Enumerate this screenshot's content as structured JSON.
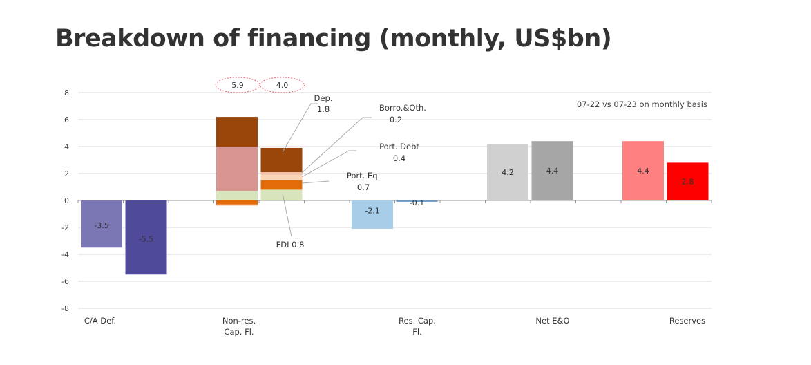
{
  "title": "Breakdown of financing (monthly, US$bn)",
  "chart_data": {
    "type": "bar",
    "stacked": true,
    "note": "07-22 vs 07-23 on monthly basis",
    "ylim": [
      -8,
      8
    ],
    "yticks": [
      8,
      6,
      4,
      2,
      0,
      -2,
      -4,
      -6,
      -8
    ],
    "grid": true,
    "categories": [
      "C/A Def.",
      "Non-res.\nCap. Fl.",
      "Res. Cap.\nFl.",
      "Net E&O",
      "Reserves"
    ],
    "bars": [
      [
        {
          "label": "-3.5",
          "segments": [
            {
              "value": -3.5,
              "color": "#7b77b5"
            }
          ]
        },
        {
          "label": "-5.5",
          "segments": [
            {
              "value": -5.5,
              "color": "#4f4a9a"
            }
          ]
        }
      ],
      [
        {
          "total_label": "5.9",
          "segments": [
            {
              "value": -0.3,
              "color": "#e36c0a"
            },
            {
              "value": -0.1,
              "color": "#fcd5b4"
            },
            {
              "value": 0.7,
              "color": "#d8e4bc"
            },
            {
              "value": 3.3,
              "color": "#d99590"
            },
            {
              "value": 2.2,
              "color": "#9a4509"
            }
          ]
        },
        {
          "total_label": "4.0",
          "segments": [
            {
              "name": "FDI",
              "value": 0.8,
              "color": "#d8e4bc"
            },
            {
              "name": "Port. Eq.",
              "value": 0.7,
              "color": "#e36c0a"
            },
            {
              "name": "Port. Debt",
              "value": 0.4,
              "color": "#fcd5b4"
            },
            {
              "name": "Borro.&Oth.",
              "value": 0.2,
              "color": "#f2c4b0"
            },
            {
              "name": "Dep.",
              "value": 1.8,
              "color": "#9a4509"
            }
          ]
        }
      ],
      [
        {
          "label": "-2.1",
          "segments": [
            {
              "value": -2.1,
              "color": "#a7cde8"
            }
          ]
        },
        {
          "label": "-0.1",
          "segments": [
            {
              "value": -0.1,
              "color": "#6f9ac6"
            }
          ]
        }
      ],
      [
        {
          "label": "4.2",
          "segments": [
            {
              "value": 4.2,
              "color": "#d0d0d0"
            }
          ]
        },
        {
          "label": "4.4",
          "segments": [
            {
              "value": 4.4,
              "color": "#a6a6a6"
            }
          ]
        }
      ],
      [
        {
          "label": "4.4",
          "segments": [
            {
              "value": 4.4,
              "color": "#ff8080"
            }
          ]
        },
        {
          "label": "2.8",
          "segments": [
            {
              "value": 2.8,
              "color": "#ff0000"
            }
          ]
        }
      ]
    ],
    "annotations": [
      {
        "name": "Dep.",
        "value": "1.8"
      },
      {
        "name": "Borro.&Oth.",
        "value": "0.2"
      },
      {
        "name": "Port. Debt",
        "value": "0.4"
      },
      {
        "name": "Port. Eq.",
        "value": "0.7"
      },
      {
        "name": "FDI",
        "value": "0.8"
      }
    ]
  }
}
